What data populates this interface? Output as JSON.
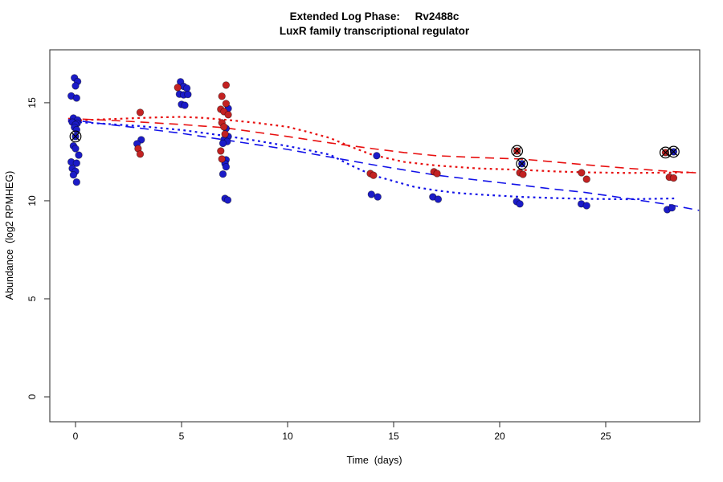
{
  "title": {
    "line1": "Extended Log Phase:     Rv2488c",
    "line2": "LuxR family transcriptional regulator"
  },
  "chart_data": {
    "type": "scatter",
    "title": "Extended Log Phase: Rv2488c — LuxR family transcriptional regulator",
    "xlabel": "Time  (days)",
    "ylabel": "Abundance  (log2 RPMHEG)",
    "xlim": [
      -1.212,
      29.432
    ],
    "ylim": [
      -1.27,
      17.7
    ],
    "x_ticks": [
      0,
      5,
      10,
      15,
      20,
      25
    ],
    "y_ticks": [
      0,
      5,
      10,
      15
    ],
    "grid": false,
    "legend": "none",
    "colors": {
      "point_blue": "#1b1bc8",
      "point_red": "#c32222",
      "line_blue": "#1212e8",
      "line_red": "#e81010",
      "highlight_ring": "#000000"
    },
    "series": [
      {
        "name": "blue-points",
        "color": "#1b1bc8",
        "points": [
          [
            -0.05,
            16.27
          ],
          [
            0.1,
            16.08
          ],
          [
            0,
            15.86
          ],
          [
            -0.2,
            15.35
          ],
          [
            0.05,
            15.24
          ],
          [
            -0.1,
            14.22
          ],
          [
            0.1,
            14.12
          ],
          [
            -0.15,
            14.01
          ],
          [
            0.08,
            13.95
          ],
          [
            0,
            13.88
          ],
          [
            -0.05,
            13.75
          ],
          [
            0.05,
            13.62
          ],
          [
            0,
            13.28
          ],
          [
            -0.1,
            12.8
          ],
          [
            0,
            12.66
          ],
          [
            0.15,
            12.33
          ],
          [
            -0.2,
            11.98
          ],
          [
            0.05,
            11.92
          ],
          [
            -0.15,
            11.65
          ],
          [
            0,
            11.5
          ],
          [
            -0.1,
            11.32
          ],
          [
            0.05,
            10.95
          ],
          [
            3.1,
            13.11
          ],
          [
            2.9,
            12.91
          ],
          [
            4.95,
            16.07
          ],
          [
            5.1,
            15.83
          ],
          [
            5.25,
            15.74
          ],
          [
            4.9,
            15.44
          ],
          [
            5.1,
            15.4
          ],
          [
            5.3,
            15.42
          ],
          [
            5.0,
            14.92
          ],
          [
            5.15,
            14.87
          ],
          [
            7.2,
            14.71
          ],
          [
            7.1,
            13.69
          ],
          [
            7.2,
            13.28
          ],
          [
            7.0,
            13.12
          ],
          [
            7.15,
            13.02
          ],
          [
            6.95,
            12.93
          ],
          [
            7.1,
            12.09
          ],
          [
            7.05,
            11.9
          ],
          [
            7.1,
            11.73
          ],
          [
            6.95,
            11.36
          ],
          [
            7.05,
            10.12
          ],
          [
            7.18,
            10.04
          ],
          [
            14.2,
            12.3
          ],
          [
            13.95,
            10.33
          ],
          [
            14.25,
            10.2
          ],
          [
            16.85,
            10.2
          ],
          [
            17.1,
            10.08
          ],
          [
            21.05,
            11.89
          ],
          [
            20.8,
            9.96
          ],
          [
            20.95,
            9.84
          ],
          [
            23.85,
            9.84
          ],
          [
            24.1,
            9.75
          ],
          [
            28.2,
            12.5
          ],
          [
            27.9,
            9.55
          ],
          [
            28.12,
            9.64
          ]
        ]
      },
      {
        "name": "red-points",
        "color": "#c32222",
        "points": [
          [
            3.05,
            14.51
          ],
          [
            2.95,
            12.66
          ],
          [
            3.05,
            12.38
          ],
          [
            4.82,
            15.78
          ],
          [
            7.1,
            15.9
          ],
          [
            6.9,
            15.33
          ],
          [
            7.1,
            14.96
          ],
          [
            6.85,
            14.67
          ],
          [
            7.0,
            14.55
          ],
          [
            7.2,
            14.39
          ],
          [
            6.9,
            13.98
          ],
          [
            7.0,
            13.77
          ],
          [
            7.05,
            13.4
          ],
          [
            6.85,
            12.54
          ],
          [
            6.9,
            12.13
          ],
          [
            13.9,
            11.39
          ],
          [
            14.05,
            11.3
          ],
          [
            16.9,
            11.48
          ],
          [
            17.05,
            11.39
          ],
          [
            20.82,
            12.54
          ],
          [
            20.95,
            11.43
          ],
          [
            21.1,
            11.35
          ],
          [
            23.86,
            11.43
          ],
          [
            24.1,
            11.1
          ],
          [
            27.82,
            12.46
          ],
          [
            28.0,
            11.2
          ],
          [
            28.2,
            11.16
          ]
        ]
      }
    ],
    "highlighted_points": [
      [
        0,
        13.28
      ],
      [
        20.82,
        12.54
      ],
      [
        21.05,
        11.89
      ],
      [
        27.82,
        12.46
      ],
      [
        28.2,
        12.5
      ]
    ],
    "curves": [
      {
        "name": "red-dashed",
        "color": "#e81010",
        "style": "dashed",
        "points": [
          [
            -0.35,
            14.2
          ],
          [
            0,
            14.18
          ],
          [
            1.5,
            14.11
          ],
          [
            3,
            14.02
          ],
          [
            5,
            13.89
          ],
          [
            7,
            13.73
          ],
          [
            8.5,
            13.5
          ],
          [
            10,
            13.28
          ],
          [
            12,
            12.95
          ],
          [
            14,
            12.66
          ],
          [
            15.5,
            12.46
          ],
          [
            17,
            12.3
          ],
          [
            19,
            12.2
          ],
          [
            21,
            12.13
          ],
          [
            22.5,
            11.99
          ],
          [
            24,
            11.84
          ],
          [
            26,
            11.66
          ],
          [
            28,
            11.5
          ],
          [
            29.4,
            11.42
          ]
        ]
      },
      {
        "name": "red-dotted",
        "color": "#e81010",
        "style": "dotted",
        "points": [
          [
            -0.35,
            14.1
          ],
          [
            0,
            14.1
          ],
          [
            1.5,
            14.16
          ],
          [
            3,
            14.22
          ],
          [
            4,
            14.26
          ],
          [
            5,
            14.28
          ],
          [
            6,
            14.23
          ],
          [
            7,
            14.14
          ],
          [
            8.5,
            13.98
          ],
          [
            10,
            13.77
          ],
          [
            11,
            13.5
          ],
          [
            12,
            13.2
          ],
          [
            13,
            12.75
          ],
          [
            14,
            12.34
          ],
          [
            15.5,
            11.98
          ],
          [
            17,
            11.8
          ],
          [
            19,
            11.65
          ],
          [
            21,
            11.58
          ],
          [
            22.5,
            11.5
          ],
          [
            24,
            11.45
          ],
          [
            26,
            11.42
          ],
          [
            27.5,
            11.43
          ],
          [
            29.1,
            11.45
          ]
        ]
      },
      {
        "name": "blue-dashed",
        "color": "#1212e8",
        "style": "dashed",
        "points": [
          [
            -0.35,
            14.14
          ],
          [
            0,
            14.1
          ],
          [
            1.5,
            13.9
          ],
          [
            3,
            13.71
          ],
          [
            5,
            13.44
          ],
          [
            7,
            13.11
          ],
          [
            8.5,
            12.87
          ],
          [
            10,
            12.62
          ],
          [
            12,
            12.23
          ],
          [
            14,
            11.84
          ],
          [
            15.5,
            11.57
          ],
          [
            17,
            11.31
          ],
          [
            19,
            11.05
          ],
          [
            21,
            10.8
          ],
          [
            22.5,
            10.6
          ],
          [
            24,
            10.43
          ],
          [
            26,
            10.12
          ],
          [
            28,
            9.8
          ],
          [
            29.4,
            9.51
          ]
        ]
      },
      {
        "name": "blue-dotted",
        "color": "#1212e8",
        "style": "dotted",
        "points": [
          [
            -0.35,
            14.05
          ],
          [
            0,
            14.02
          ],
          [
            1.5,
            13.92
          ],
          [
            3,
            13.81
          ],
          [
            5,
            13.61
          ],
          [
            7,
            13.32
          ],
          [
            8.5,
            13.07
          ],
          [
            10,
            12.79
          ],
          [
            11,
            12.58
          ],
          [
            12,
            12.35
          ],
          [
            13,
            11.8
          ],
          [
            14,
            11.31
          ],
          [
            15.5,
            10.85
          ],
          [
            16,
            10.7
          ],
          [
            17,
            10.53
          ],
          [
            18,
            10.4
          ],
          [
            19,
            10.32
          ],
          [
            21,
            10.2
          ],
          [
            22.5,
            10.14
          ],
          [
            24,
            10.1
          ],
          [
            26,
            10.08
          ],
          [
            28.3,
            10.12
          ]
        ]
      }
    ]
  }
}
